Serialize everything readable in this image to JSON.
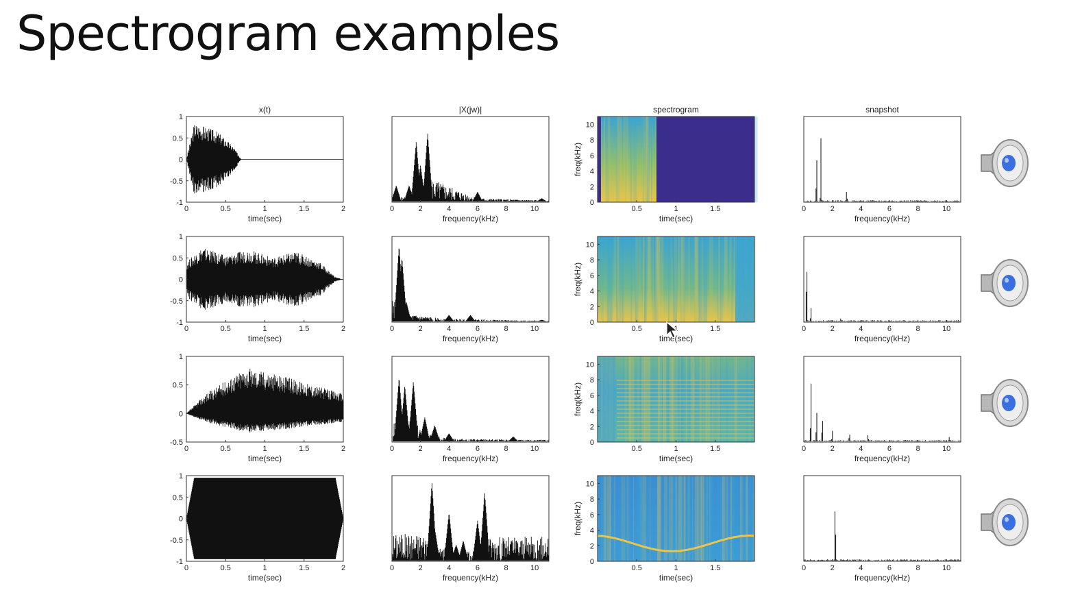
{
  "slide": {
    "title": "Spectrogram examples"
  },
  "columns": [
    {
      "title": "x(t)",
      "xlabel": "time(sec)",
      "ylabel": ""
    },
    {
      "title": "|X(jw)|",
      "xlabel": "frequency(kHz)",
      "ylabel": ""
    },
    {
      "title": "spectrogram",
      "xlabel": "time(sec)",
      "ylabel": "freq(kHz)"
    },
    {
      "title": "snapshot",
      "xlabel": "frequency(kHz)",
      "ylabel": ""
    }
  ],
  "time_axis": {
    "xlim": [
      0,
      2
    ],
    "xticks": [
      "0",
      "0.5",
      "1",
      "1.5",
      "2"
    ]
  },
  "freq_axis": {
    "xlim": [
      0,
      11
    ],
    "xticks": [
      "0",
      "2",
      "4",
      "6",
      "8",
      "10"
    ]
  },
  "spec_axis": {
    "xticks": [
      "0.5",
      "1",
      "1.5"
    ],
    "yticks": [
      "0",
      "2",
      "4",
      "6",
      "8",
      "10"
    ],
    "ylim": [
      0,
      11
    ]
  },
  "rows": [
    {
      "wave_yticks": [
        "1",
        "0.5",
        "0",
        "-0.5",
        "-1"
      ],
      "wave_ylim": [
        -1,
        1
      ]
    },
    {
      "wave_yticks": [
        "1",
        "0.5",
        "0",
        "-0.5",
        "-1"
      ],
      "wave_ylim": [
        -1,
        1
      ]
    },
    {
      "wave_yticks": [
        "1",
        "0.5",
        "0",
        "-0.5"
      ],
      "wave_ylim": [
        -0.5,
        1
      ]
    },
    {
      "wave_yticks": [
        "1",
        "0.5",
        "0",
        "-0.5",
        "-1"
      ],
      "wave_ylim": [
        -1,
        1
      ]
    }
  ],
  "icons": {
    "speaker": "speaker-icon",
    "cursor": "mouse-pointer-icon"
  },
  "colors": {
    "ink": "#111111",
    "spec_low": "#3a2d8c",
    "spec_mid": "#3ba4d2",
    "spec_high": "#e9c54a",
    "speaker_blue": "#3a6fe0"
  },
  "chart_data": [
    {
      "type": "line",
      "title": "x(t)",
      "xlabel": "time(sec)",
      "xlim": [
        0,
        2
      ],
      "ylim": [
        -1,
        1
      ],
      "note": "one waveform panel per row",
      "series": [
        {
          "x": [
            0,
            0.1,
            0.2,
            0.4,
            0.6,
            0.7,
            2
          ],
          "values": [
            0,
            0.85,
            0.8,
            0.65,
            0.3,
            0,
            0
          ]
        },
        {
          "x": [
            0,
            0.2,
            0.5,
            0.8,
            1.1,
            1.4,
            1.7,
            1.9,
            2
          ],
          "values": [
            0.4,
            0.75,
            0.55,
            0.7,
            0.5,
            0.65,
            0.4,
            0.05,
            0
          ]
        },
        {
          "x": [
            0,
            0.25,
            0.75,
            1,
            1.5,
            2
          ],
          "values": [
            0,
            0.35,
            0.8,
            0.75,
            0.55,
            0.35
          ]
        },
        {
          "x": [
            0,
            0.1,
            1,
            1.9,
            2
          ],
          "values": [
            0,
            0.95,
            0.95,
            0.95,
            0
          ]
        }
      ]
    },
    {
      "type": "line",
      "title": "|X(jw)|",
      "xlabel": "frequency(kHz)",
      "xlim": [
        0,
        11
      ],
      "series": [
        {
          "x": [
            0.3,
            1.2,
            1.7,
            2,
            2.5,
            6,
            10.5
          ],
          "values": [
            0.2,
            0.2,
            0.75,
            0.45,
            0.85,
            0.12,
            0.04
          ]
        },
        {
          "x": [
            0.5,
            0.7,
            1.0,
            4.0,
            5.5,
            10.5
          ],
          "values": [
            0.95,
            0.8,
            0.25,
            0.08,
            0.08,
            0.02
          ]
        },
        {
          "x": [
            0.5,
            0.9,
            1.5,
            2.3,
            3.0,
            4.0,
            8.5
          ],
          "values": [
            0.8,
            0.7,
            0.75,
            0.3,
            0.2,
            0.1,
            0.06
          ]
        },
        {
          "x": [
            2.8,
            3.0,
            4.0,
            4.5,
            5.0,
            6.0,
            6.5
          ],
          "values": [
            0.98,
            0.4,
            0.6,
            0.2,
            0.25,
            0.5,
            0.85
          ]
        }
      ]
    },
    {
      "type": "heatmap",
      "title": "spectrogram",
      "xlabel": "time(sec)",
      "ylabel": "freq(kHz)",
      "ylim": [
        0,
        11
      ],
      "note": "rows 1-4 spectrogram images"
    },
    {
      "type": "line",
      "title": "snapshot",
      "xlabel": "frequency(kHz)",
      "xlim": [
        0,
        11
      ],
      "series": [
        {
          "x": [
            0.9,
            1.2,
            3.0,
            10
          ],
          "values": [
            0.65,
            0.8,
            0.15,
            0.02
          ]
        },
        {
          "x": [
            0.2,
            0.5,
            2.6
          ],
          "values": [
            0.95,
            0.2,
            0.05
          ]
        },
        {
          "x": [
            0.5,
            0.9,
            1.3,
            2.0,
            3.2,
            4.5,
            10.2
          ],
          "values": [
            0.85,
            0.45,
            0.35,
            0.15,
            0.12,
            0.1,
            0.06
          ]
        },
        {
          "x": [
            2.2
          ],
          "values": [
            0.9
          ]
        }
      ]
    }
  ]
}
